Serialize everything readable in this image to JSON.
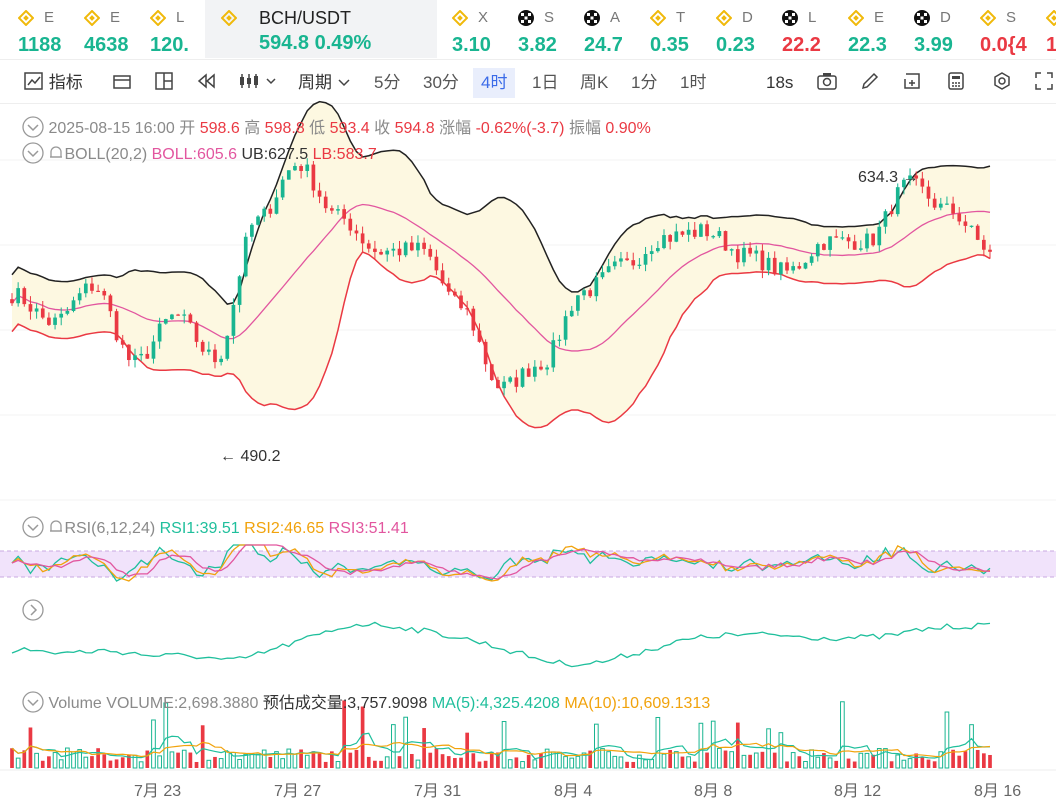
{
  "ticker": [
    {
      "name": "E",
      "price": "1188",
      "color": "#19b591",
      "icon": "bnb-icon"
    },
    {
      "name": "E",
      "price": "4638",
      "color": "#19b591",
      "icon": "bnb-icon"
    },
    {
      "name": "L",
      "price": "120.",
      "color": "#19b591",
      "icon": "bnb-icon"
    },
    {
      "name": "BCH/USDT",
      "price": "594.8",
      "change": "0.49%",
      "color": "#19b591",
      "icon": "bnb-icon",
      "active": true
    },
    {
      "name": "X",
      "price": "3.10",
      "color": "#19b591",
      "icon": "bnb-icon"
    },
    {
      "name": "S",
      "price": "3.82",
      "color": "#19b591",
      "icon": "okx-icon"
    },
    {
      "name": "A",
      "price": "24.7",
      "color": "#19b591",
      "icon": "okx-icon"
    },
    {
      "name": "T",
      "price": "0.35",
      "color": "#19b591",
      "icon": "bnb-icon"
    },
    {
      "name": "D",
      "price": "0.23",
      "color": "#19b591",
      "icon": "bnb-icon"
    },
    {
      "name": "L",
      "price": "22.2",
      "color": "#ea3943",
      "icon": "okx-icon"
    },
    {
      "name": "E",
      "price": "22.3",
      "color": "#19b591",
      "icon": "bnb-icon"
    },
    {
      "name": "D",
      "price": "3.99",
      "color": "#19b591",
      "icon": "okx-icon"
    },
    {
      "name": "S",
      "price": "0.0{4",
      "color": "#ea3943",
      "icon": "bnb-icon"
    },
    {
      "name": "",
      "price": "1",
      "color": "#ea3943",
      "icon": "bnb-icon"
    }
  ],
  "toolbar": {
    "indicators_label": "指标",
    "period_label": "周期",
    "periods": [
      "5分",
      "30分",
      "4时",
      "1日",
      "周K",
      "1分",
      "1时"
    ],
    "active_period": "4时",
    "refresh": "18s"
  },
  "ohlc": {
    "time": "2025-08-15 16:00",
    "open_label": "开",
    "open": "598.6",
    "high_label": "高",
    "high": "598.8",
    "low_label": "低",
    "low": "593.4",
    "close_label": "收",
    "close": "594.8",
    "chg_label": "涨幅",
    "chg": "-0.62%(-3.7)",
    "amp_label": "振幅",
    "amp": "0.90%"
  },
  "boll": {
    "name": "BOLL(20,2)",
    "mid": "BOLL:605.6",
    "ub": "UB:627.5",
    "lb": "LB:583.7"
  },
  "markers": {
    "high": "634.3",
    "low": "490.2"
  },
  "rsi": {
    "name": "RSI(6,12,24)",
    "rsi1": "RSI1:39.51",
    "rsi2": "RSI2:46.65",
    "rsi3": "RSI3:51.41"
  },
  "volume": {
    "name": "Volume",
    "vol": "VOLUME:2,698.3880",
    "est": "预估成交量:3,757.9098",
    "ma5": "MA(5):4,325.4208",
    "ma10": "MA(10):10,609.1313"
  },
  "x_labels": [
    "7月 23",
    "7月 27",
    "7月 31",
    "8月 4",
    "8月 8",
    "8月 12",
    "8月 16"
  ],
  "chart_data": {
    "type": "candlestick",
    "interval": "4h",
    "y_range": [
      480,
      640
    ],
    "series_anchor_closes": [
      574,
      560,
      578,
      540,
      563,
      542,
      610,
      638,
      612,
      595,
      596,
      568,
      528,
      540,
      575,
      588,
      602,
      605,
      593,
      585,
      600,
      600,
      628,
      615,
      596
    ],
    "colors": {
      "up": "#19b591",
      "down": "#ea3943",
      "ub": "#222222",
      "mid": "#e2569f",
      "lb": "#ea3943",
      "rsi1": "#1fbf9c",
      "rsi2": "#f1a30d",
      "rsi3": "#e2569f"
    }
  }
}
